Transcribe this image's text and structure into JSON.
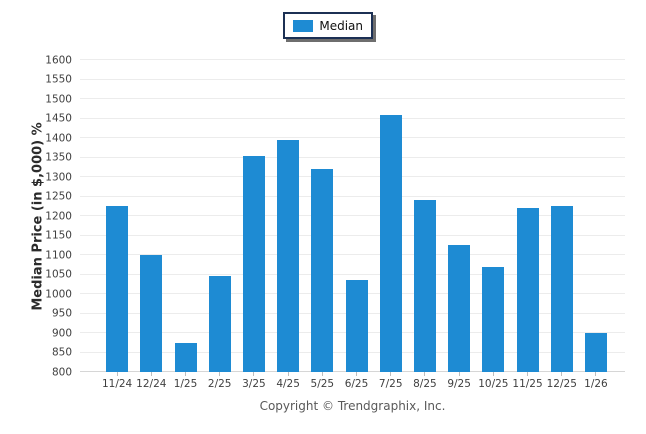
{
  "legend": {
    "label": "Median",
    "swatch_color": "#1e8bd3"
  },
  "footer": {
    "copyright": "Copyright © Trendgraphix, Inc."
  },
  "chart_data": {
    "type": "bar",
    "title": "",
    "categories": [
      "11/24",
      "12/24",
      "1/25",
      "2/25",
      "3/25",
      "4/25",
      "5/25",
      "6/25",
      "7/25",
      "8/25",
      "9/25",
      "10/25",
      "11/25",
      "12/25",
      "1/26"
    ],
    "series": [
      {
        "name": "Median",
        "values": [
          1225,
          1100,
          875,
          1045,
          1355,
          1395,
          1320,
          1035,
          1460,
          1240,
          1125,
          1070,
          1220,
          1225,
          900
        ]
      }
    ],
    "xlabel": "",
    "ylabel": "Median Price (in $,000) %",
    "ylim": [
      800,
      1600
    ],
    "ytick_step": 50,
    "bar_color": "#1e8bd3",
    "grid": true,
    "legend_position": "top-center"
  }
}
